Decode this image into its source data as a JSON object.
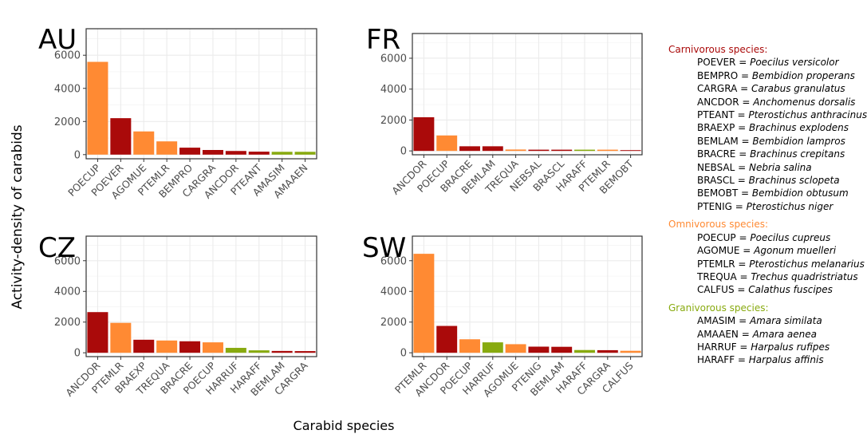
{
  "figure": {
    "ylabel": "Activity-density of carabids",
    "xlabel": "Carabid species"
  },
  "colors": {
    "carnivorous": "#aa0a0a",
    "omnivorous": "#ff8a33",
    "granivorous": "#88aa0f"
  },
  "chart_data": [
    {
      "type": "bar",
      "title": "AU",
      "categories": [
        "POECUP",
        "POEVER",
        "AGOMUE",
        "PTEMLR",
        "BEMPRO",
        "CARGRA",
        "ANCDOR",
        "PTEANT",
        "AMASIM",
        "AMAAEN"
      ],
      "values": [
        5600,
        2200,
        1400,
        800,
        420,
        280,
        220,
        180,
        170,
        170
      ],
      "groups": [
        "omnivorous",
        "carnivorous",
        "omnivorous",
        "omnivorous",
        "carnivorous",
        "carnivorous",
        "carnivorous",
        "carnivorous",
        "granivorous",
        "granivorous"
      ],
      "ylim": [
        -250,
        7600
      ],
      "yticks": [
        0,
        2000,
        4000,
        6000
      ],
      "grid": true
    },
    {
      "type": "bar",
      "title": "FR",
      "categories": [
        "ANCDOR",
        "POECUP",
        "BRACRE",
        "BEMLAM",
        "TREQUA",
        "NEBSAL",
        "BRASCL",
        "HARAFF",
        "PTEMLR",
        "BEMOBT"
      ],
      "values": [
        2180,
        1000,
        300,
        300,
        90,
        80,
        80,
        80,
        80,
        50
      ],
      "groups": [
        "carnivorous",
        "omnivorous",
        "carnivorous",
        "carnivorous",
        "omnivorous",
        "carnivorous",
        "carnivorous",
        "granivorous",
        "omnivorous",
        "carnivorous"
      ],
      "ylim": [
        -250,
        7600
      ],
      "yticks": [
        0,
        2000,
        4000,
        6000
      ],
      "grid": true
    },
    {
      "type": "bar",
      "title": "CZ",
      "categories": [
        "ANCDOR",
        "PTEMLR",
        "BRAEXP",
        "TREQUA",
        "BRACRE",
        "POECUP",
        "HARRUF",
        "HARAFF",
        "BEMLAM",
        "CARGRA"
      ],
      "values": [
        2650,
        1950,
        850,
        800,
        750,
        680,
        320,
        160,
        120,
        110
      ],
      "groups": [
        "carnivorous",
        "omnivorous",
        "carnivorous",
        "omnivorous",
        "carnivorous",
        "omnivorous",
        "granivorous",
        "granivorous",
        "carnivorous",
        "carnivorous"
      ],
      "ylim": [
        -250,
        7600
      ],
      "yticks": [
        0,
        2000,
        4000,
        6000
      ],
      "grid": true
    },
    {
      "type": "bar",
      "title": "SW",
      "categories": [
        "PTEMLR",
        "ANCDOR",
        "POECUP",
        "HARRUF",
        "AGOMUE",
        "PTENIG",
        "BEMLAM",
        "HARAFF",
        "CARGRA",
        "CALFUS"
      ],
      "values": [
        6450,
        1750,
        880,
        680,
        560,
        400,
        390,
        180,
        170,
        130
      ],
      "groups": [
        "omnivorous",
        "carnivorous",
        "omnivorous",
        "granivorous",
        "omnivorous",
        "carnivorous",
        "carnivorous",
        "granivorous",
        "carnivorous",
        "omnivorous"
      ],
      "ylim": [
        -250,
        7600
      ],
      "yticks": [
        0,
        2000,
        4000,
        6000
      ],
      "grid": true
    }
  ],
  "legend": {
    "placement": "right",
    "groups": [
      {
        "key": "carnivorous",
        "heading": "Carnivorous species:",
        "entries": [
          {
            "code": "POEVER",
            "species": "Poecilus versicolor"
          },
          {
            "code": "BEMPRO",
            "species": "Bembidion properans"
          },
          {
            "code": "CARGRA",
            "species": "Carabus granulatus"
          },
          {
            "code": "ANCDOR",
            "species": "Anchomenus dorsalis"
          },
          {
            "code": "PTEANT",
            "species": "Pterostichus anthracinus"
          },
          {
            "code": "BRAEXP",
            "species": "Brachinus explodens"
          },
          {
            "code": "BEMLAM",
            "species": "Bembidion lampros"
          },
          {
            "code": "BRACRE",
            "species": "Brachinus crepitans"
          },
          {
            "code": "NEBSAL",
            "species": "Nebria salina"
          },
          {
            "code": "BRASCL",
            "species": "Brachinus sclopeta"
          },
          {
            "code": "BEMOBT",
            "species": "Bembidion obtusum"
          },
          {
            "code": "PTENIG",
            "species": "Pterostichus niger"
          }
        ]
      },
      {
        "key": "omnivorous",
        "heading": "Omnivorous species:",
        "entries": [
          {
            "code": "POECUP",
            "species": "Poecilus cupreus"
          },
          {
            "code": "AGOMUE",
            "species": "Agonum muelleri"
          },
          {
            "code": "PTEMLR",
            "species": "Pterostichus melanarius"
          },
          {
            "code": "TREQUA",
            "species": "Trechus quadristriatus"
          },
          {
            "code": "CALFUS",
            "species": "Calathus fuscipes"
          }
        ]
      },
      {
        "key": "granivorous",
        "heading": "Granivorous species:",
        "entries": [
          {
            "code": "AMASIM",
            "species": "Amara similata"
          },
          {
            "code": "AMAAEN",
            "species": "Amara aenea"
          },
          {
            "code": "HARRUF",
            "species": "Harpalus rufipes"
          },
          {
            "code": "HARAFF",
            "species": "Harpalus affinis"
          }
        ]
      }
    ]
  }
}
